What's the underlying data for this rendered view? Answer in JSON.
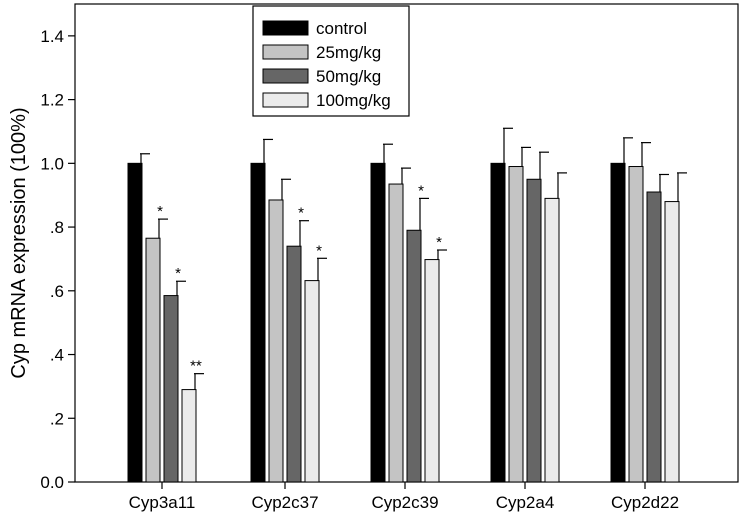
{
  "chart_data": {
    "type": "bar",
    "title": "",
    "xlabel": "",
    "ylabel": "Cyp mRNA expression (100%)",
    "ylim": [
      0,
      1.5
    ],
    "yticks": [
      0.0,
      0.2,
      0.4,
      0.6,
      0.8,
      1.0,
      1.2,
      1.4
    ],
    "ytick_labels": [
      "0.0",
      ".2",
      ".4",
      ".6",
      ".8",
      "1.0",
      "1.2",
      "1.4"
    ],
    "categories": [
      "Cyp3a11",
      "Cyp2c37",
      "Cyp2c39",
      "Cyp2a4",
      "Cyp2d22"
    ],
    "legend_position": "top-center",
    "grid": false,
    "series": [
      {
        "name": "control",
        "color": "#000000",
        "values": [
          1.0,
          1.0,
          1.0,
          1.0,
          1.0
        ],
        "errors": [
          0.03,
          0.075,
          0.06,
          0.11,
          0.08
        ],
        "significance": [
          "",
          "",
          "",
          "",
          ""
        ]
      },
      {
        "name": "25mg/kg",
        "color": "#c4c4c4",
        "values": [
          0.765,
          0.885,
          0.935,
          0.99,
          0.99
        ],
        "errors": [
          0.06,
          0.065,
          0.05,
          0.06,
          0.075
        ],
        "significance": [
          "*",
          "",
          "",
          "",
          ""
        ]
      },
      {
        "name": "50mg/kg",
        "color": "#666666",
        "values": [
          0.585,
          0.74,
          0.79,
          0.95,
          0.91
        ],
        "errors": [
          0.045,
          0.08,
          0.1,
          0.085,
          0.055
        ],
        "significance": [
          "*",
          "*",
          "*",
          "",
          ""
        ]
      },
      {
        "name": "100mg/kg",
        "color": "#ebebeb",
        "values": [
          0.29,
          0.632,
          0.698,
          0.89,
          0.88
        ],
        "errors": [
          0.05,
          0.07,
          0.03,
          0.08,
          0.09
        ],
        "significance": [
          "**",
          "*",
          "*",
          "",
          ""
        ]
      }
    ]
  }
}
